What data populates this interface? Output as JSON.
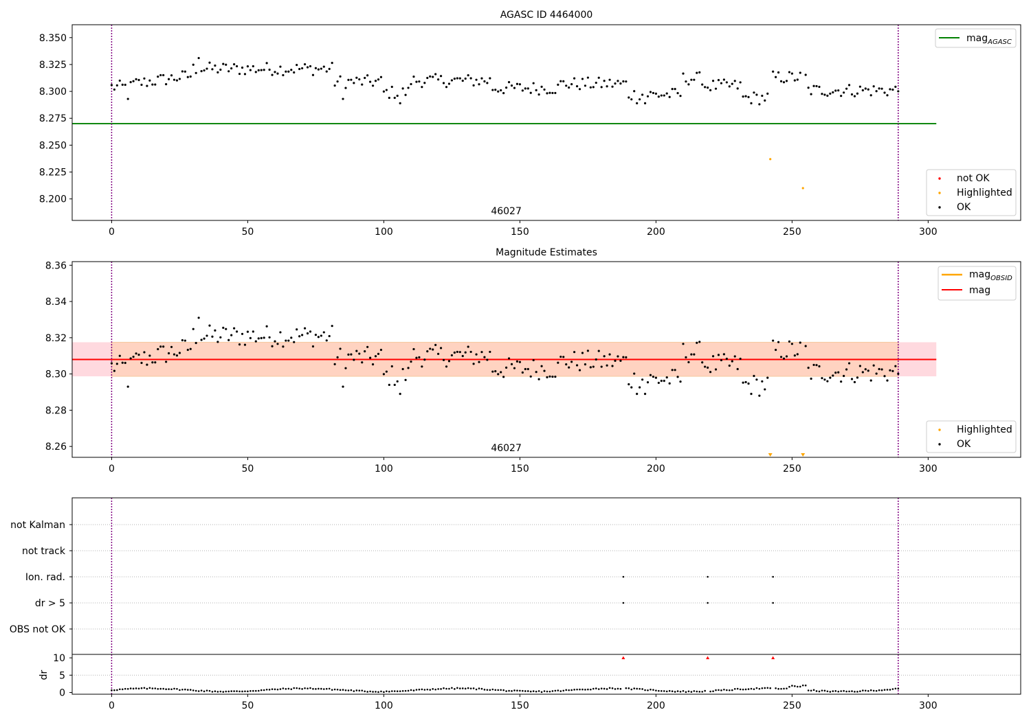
{
  "chart_data": [
    {
      "type": "scatter",
      "title": "AGASC ID 4464000",
      "xlim": [
        -14.5,
        334
      ],
      "ylim": [
        8.18,
        8.362
      ],
      "xticks": [
        0,
        50,
        100,
        150,
        200,
        250,
        300
      ],
      "yticks": [
        8.2,
        8.225,
        8.25,
        8.275,
        8.3,
        8.325,
        8.35
      ],
      "ytick_labels": [
        "8.200",
        "8.225",
        "8.250",
        "8.275",
        "8.300",
        "8.325",
        "8.350"
      ],
      "reference_line": {
        "name_main": "mag",
        "name_sub": "AGASC",
        "value": 8.27,
        "x_range": [
          -14.5,
          303
        ],
        "color": "#008000"
      },
      "obsid_label": "46027",
      "obsid_label_x": 145,
      "obs_boundaries": [
        0,
        289
      ],
      "legend_top": "top-right",
      "legend_bottom": "lower-right",
      "legend_entries": [
        {
          "label": "not OK",
          "color": "#ff0000"
        },
        {
          "label": "Highlighted",
          "color": "#ffa500"
        },
        {
          "label": "OK",
          "color": "#000000"
        }
      ],
      "highlighted": [
        {
          "x": 242,
          "y": 8.237
        },
        {
          "x": 254,
          "y": 8.21
        }
      ]
    },
    {
      "type": "scatter",
      "title": "Magnitude Estimates",
      "xlim": [
        -14.5,
        334
      ],
      "ylim": [
        8.254,
        8.362
      ],
      "xticks": [
        0,
        50,
        100,
        150,
        200,
        250,
        300
      ],
      "yticks": [
        8.26,
        8.28,
        8.3,
        8.32,
        8.34,
        8.36
      ],
      "ytick_labels": [
        "8.26",
        "8.28",
        "8.30",
        "8.32",
        "8.34",
        "8.36"
      ],
      "mag_line": {
        "name": "mag",
        "value": 8.308,
        "x_range": [
          -14.5,
          303
        ],
        "color": "#ff0000"
      },
      "mag_obsid": {
        "name_main": "mag",
        "name_sub": "OBSID",
        "value": 8.308,
        "band": [
          8.2987,
          8.3175
        ],
        "x_range": [
          0,
          289
        ],
        "color": "#ffa500"
      },
      "mag_band": [
        8.2987,
        8.3175
      ],
      "obsid_label": "46027",
      "obsid_label_x": 145,
      "legend_entries": [
        {
          "label": "Highlighted",
          "color": "#ffa500"
        },
        {
          "label": "OK",
          "color": "#000000"
        }
      ],
      "highlighted_offscale": [
        242,
        254
      ]
    },
    {
      "type": "scatter",
      "title": "",
      "flag_rows": [
        "not Kalman",
        "not track",
        "Ion. rad.",
        "dr > 5",
        "OBS not OK"
      ],
      "flag_events": {
        "Ion. rad.": [
          188,
          219,
          243
        ],
        "dr > 5": [
          188,
          219,
          243
        ]
      },
      "dr_ylabel": "dr",
      "dr_yticks": [
        0,
        5,
        10
      ],
      "dr_ylim": [
        -0.5,
        11
      ],
      "dr_clipped": [
        188,
        219,
        243
      ],
      "xticks": [
        0,
        50,
        100,
        150,
        200,
        250,
        300
      ]
    }
  ],
  "colors": {
    "ok": "#000000",
    "not_ok": "#ff0000",
    "highlighted": "#ffa500",
    "boundary": "#800080",
    "band_outer": "#ffd9df",
    "band_inner": "#ffd3c1"
  }
}
